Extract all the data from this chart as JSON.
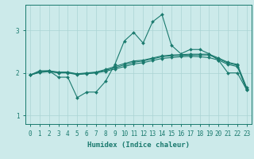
{
  "xlabel": "Humidex (Indice chaleur)",
  "x_ticks": [
    0,
    1,
    2,
    3,
    4,
    5,
    6,
    7,
    8,
    9,
    10,
    11,
    12,
    13,
    14,
    15,
    16,
    17,
    18,
    19,
    20,
    21,
    22,
    23
  ],
  "ylim": [
    0.8,
    3.6
  ],
  "yticks": [
    1,
    2,
    3
  ],
  "bg_color": "#cceaea",
  "line_color": "#1a7a6e",
  "series": [
    [
      1.95,
      2.05,
      2.05,
      1.9,
      1.9,
      1.42,
      1.55,
      1.55,
      1.8,
      2.2,
      2.75,
      2.95,
      2.7,
      3.2,
      3.37,
      2.65,
      2.45,
      2.55,
      2.55,
      2.45,
      2.3,
      2.0,
      2.0,
      1.6
    ],
    [
      1.95,
      2.03,
      2.05,
      2.02,
      2.02,
      1.98,
      2.0,
      2.02,
      2.08,
      2.15,
      2.22,
      2.28,
      2.3,
      2.35,
      2.4,
      2.42,
      2.43,
      2.44,
      2.44,
      2.44,
      2.35,
      2.25,
      2.2,
      1.65
    ],
    [
      1.95,
      2.02,
      2.04,
      2.01,
      2.01,
      1.97,
      1.99,
      2.01,
      2.06,
      2.12,
      2.19,
      2.25,
      2.28,
      2.33,
      2.38,
      2.4,
      2.41,
      2.42,
      2.42,
      2.42,
      2.33,
      2.23,
      2.18,
      1.63
    ],
    [
      1.95,
      2.01,
      2.03,
      2.0,
      2.0,
      1.96,
      1.98,
      2.0,
      2.04,
      2.09,
      2.15,
      2.21,
      2.24,
      2.29,
      2.34,
      2.36,
      2.38,
      2.39,
      2.38,
      2.36,
      2.3,
      2.2,
      2.15,
      1.6
    ]
  ],
  "marker": "D",
  "marker_size": 2.0,
  "linewidth": 0.8,
  "grid_color": "#aad4d4",
  "font_color": "#1a7a6e",
  "tick_fontsize": 5.5,
  "xlabel_fontsize": 6.5
}
